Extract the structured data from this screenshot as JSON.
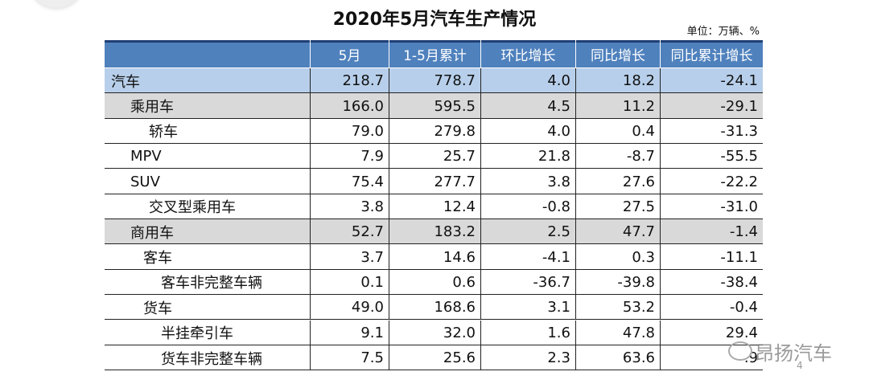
{
  "header": {
    "title": "2020年5月汽车生产情况",
    "unit": "单位：万辆、%"
  },
  "table": {
    "columns": [
      "5月",
      "1-5月累计",
      "环比增长",
      "同比增长",
      "同比累计增长"
    ],
    "rows": [
      {
        "label": "汽车",
        "values": [
          "218.7",
          "778.7",
          "4.0",
          "18.2",
          "-24.1"
        ]
      },
      {
        "label": "乘用车",
        "values": [
          "166.0",
          "595.5",
          "4.5",
          "11.2",
          "-29.1"
        ]
      },
      {
        "label": "轿车",
        "values": [
          "79.0",
          "279.8",
          "4.0",
          "0.4",
          "-31.3"
        ]
      },
      {
        "label": "MPV",
        "values": [
          "7.9",
          "25.7",
          "21.8",
          "-8.7",
          "-55.5"
        ]
      },
      {
        "label": "SUV",
        "values": [
          "75.4",
          "277.7",
          "3.8",
          "27.6",
          "-22.2"
        ]
      },
      {
        "label": "交叉型乘用车",
        "values": [
          "3.8",
          "12.4",
          "-0.8",
          "27.5",
          "-31.0"
        ]
      },
      {
        "label": "商用车",
        "values": [
          "52.7",
          "183.2",
          "2.5",
          "47.7",
          "-1.4"
        ]
      },
      {
        "label": "客车",
        "values": [
          "3.7",
          "14.6",
          "-4.1",
          "0.3",
          "-11.1"
        ]
      },
      {
        "label": "客车非完整车辆",
        "values": [
          "0.1",
          "0.6",
          "-36.7",
          "-39.8",
          "-38.4"
        ]
      },
      {
        "label": "货车",
        "values": [
          "49.0",
          "168.6",
          "3.1",
          "53.2",
          "-0.4"
        ]
      },
      {
        "label": "半挂牵引车",
        "values": [
          "9.1",
          "32.0",
          "1.6",
          "47.8",
          "29.4"
        ]
      },
      {
        "label": "货车非完整车辆",
        "values": [
          "7.5",
          "25.6",
          "2.3",
          "63.6",
          ".9"
        ]
      }
    ]
  },
  "watermark": {
    "text": "昂扬汽车",
    "page": "4"
  }
}
